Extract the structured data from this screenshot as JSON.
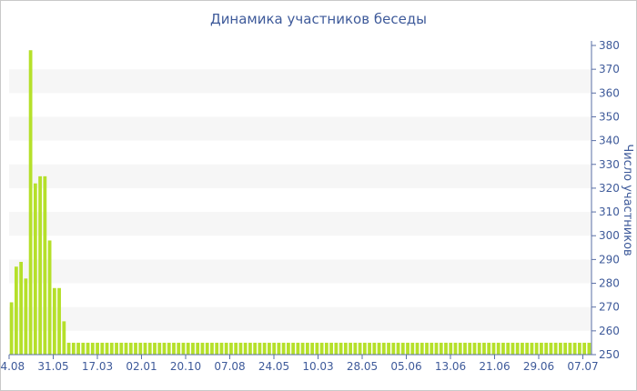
{
  "chart_data": {
    "type": "bar",
    "title": "Динамика участников беседы",
    "xlabel": "",
    "ylabel": "Число участников",
    "ylim": [
      250,
      380
    ],
    "y_ticks": [
      250,
      260,
      270,
      280,
      290,
      300,
      310,
      320,
      330,
      340,
      350,
      360,
      370,
      380
    ],
    "y_axis_side": "right",
    "grid": "alternating horizontal bands",
    "legend": "none",
    "x_tick_labels": [
      "14.08",
      "31.05",
      "17.03",
      "02.01",
      "20.10",
      "07.08",
      "24.05",
      "10.03",
      "28.05",
      "05.06",
      "13.06",
      "21.06",
      "29.06",
      "07.07"
    ],
    "values": [
      272,
      287,
      289,
      282,
      378,
      322,
      325,
      325,
      298,
      278,
      278,
      264,
      255,
      255,
      255,
      255,
      255,
      255,
      255,
      255,
      255,
      255,
      255,
      255,
      255,
      255,
      255,
      255,
      255,
      255,
      255,
      255,
      255,
      255,
      255,
      255,
      255,
      255,
      255,
      255,
      255,
      255,
      255,
      255,
      255,
      255,
      255,
      255,
      255,
      255,
      255,
      255,
      255,
      255,
      255,
      255,
      255,
      255,
      255,
      255,
      255,
      255,
      255,
      255,
      255,
      255,
      255,
      255,
      255,
      255,
      255,
      255,
      255,
      255,
      255,
      255,
      255,
      255,
      255,
      255,
      255,
      255,
      255,
      255,
      255,
      255,
      255,
      255,
      255,
      255,
      255,
      255,
      255,
      255,
      255,
      255,
      255,
      255,
      255,
      255,
      255,
      255,
      255,
      255,
      255,
      255,
      255,
      255,
      255,
      255,
      255,
      255,
      255,
      255,
      255,
      255,
      255,
      255,
      255,
      255,
      255,
      255
    ],
    "colors": {
      "bar": "#b5e02a",
      "band": "#f6f6f6",
      "text": "#3e5a9a",
      "axis": "#5a6fa6"
    }
  }
}
